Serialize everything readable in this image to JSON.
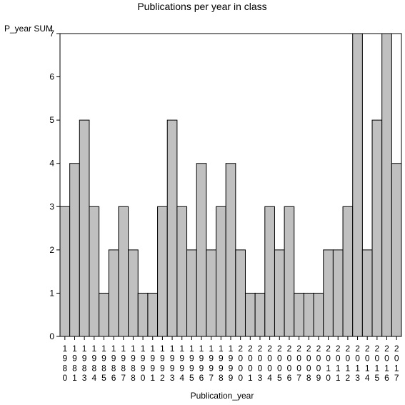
{
  "chart_data": {
    "type": "bar",
    "title": "Publications per year in class",
    "ylabel": "P_year SUM",
    "xlabel": "Publication_year",
    "ylim": [
      0,
      7
    ],
    "yticks": [
      0,
      1,
      2,
      3,
      4,
      5,
      6,
      7
    ],
    "grid": false,
    "bar_color": "#c0c0c0",
    "categories": [
      "1980",
      "1981",
      "1983",
      "1984",
      "1985",
      "1986",
      "1987",
      "1988",
      "1990",
      "1991",
      "1992",
      "1993",
      "1994",
      "1995",
      "1996",
      "1997",
      "1998",
      "1999",
      "2000",
      "2001",
      "2003",
      "2004",
      "2005",
      "2006",
      "2007",
      "2008",
      "2009",
      "2010",
      "2011",
      "2012",
      "2013",
      "2014",
      "2015",
      "2016",
      "2017"
    ],
    "values": [
      3,
      4,
      5,
      3,
      1,
      2,
      3,
      2,
      1,
      1,
      3,
      5,
      3,
      2,
      4,
      2,
      3,
      4,
      2,
      1,
      1,
      3,
      2,
      3,
      1,
      1,
      1,
      2,
      2,
      3,
      7,
      2,
      5,
      7,
      4
    ]
  }
}
